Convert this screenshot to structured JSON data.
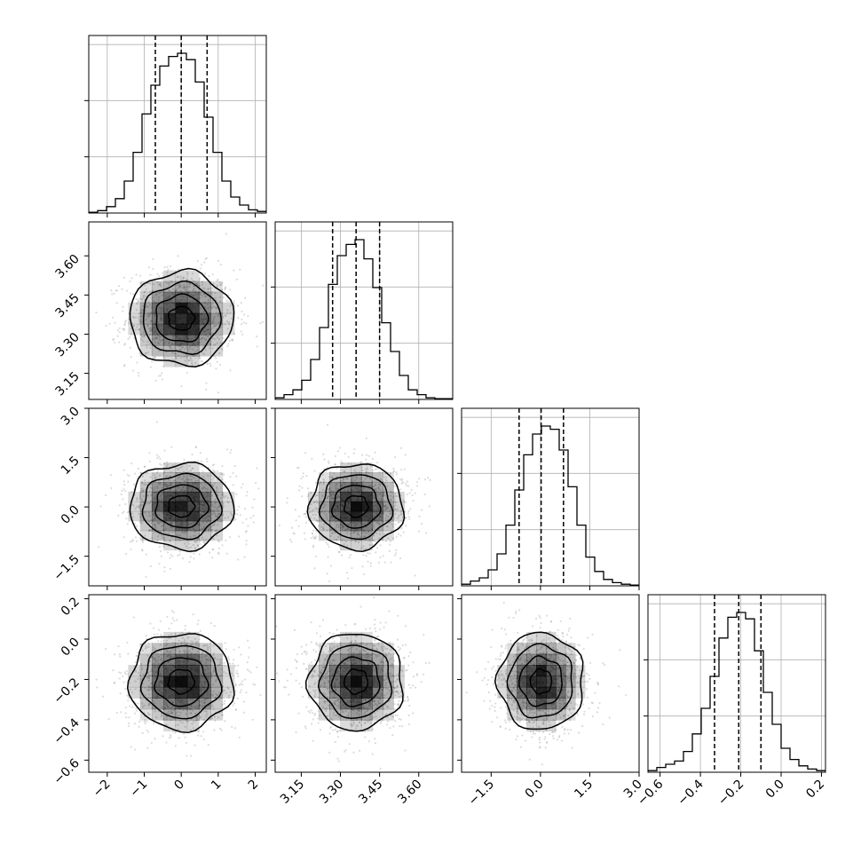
{
  "chart_data": {
    "type": "scatter",
    "variables": [
      {
        "mean": 0.0,
        "sd": 0.7,
        "range": [
          -2.5,
          2.3
        ],
        "ticks": [
          "−2",
          "−1",
          "0",
          "1",
          "2"
        ],
        "tick_values": [
          -2,
          -1,
          0,
          1,
          2
        ],
        "quantiles": [
          -0.7,
          0.0,
          0.7
        ]
      },
      {
        "mean": 3.36,
        "sd": 0.09,
        "range": [
          3.05,
          3.73
        ],
        "ticks": [
          "3.15",
          "3.30",
          "3.45",
          "3.60"
        ],
        "tick_values": [
          3.15,
          3.3,
          3.45,
          3.6
        ],
        "quantiles": [
          3.27,
          3.36,
          3.45
        ]
      },
      {
        "mean": 0.02,
        "sd": 0.65,
        "range": [
          -2.4,
          3.0
        ],
        "ticks": [
          "−1.5",
          "0.0",
          "1.5",
          "3.0"
        ],
        "tick_values": [
          -1.5,
          0.0,
          1.5,
          3.0
        ],
        "quantiles": [
          -0.65,
          0.02,
          0.7
        ]
      },
      {
        "mean": -0.21,
        "sd": 0.12,
        "range": [
          -0.66,
          0.22
        ],
        "ticks": [
          "−0.6",
          "−0.4",
          "−0.2",
          "0.0",
          "0.2"
        ],
        "tick_values": [
          -0.6,
          -0.4,
          -0.2,
          0.0,
          0.2
        ],
        "quantiles": [
          -0.33,
          -0.21,
          -0.1
        ]
      }
    ],
    "histograms": [
      {
        "counts": [
          0.005,
          0.015,
          0.04,
          0.09,
          0.2,
          0.38,
          0.62,
          0.8,
          0.92,
          0.98,
          1.0,
          0.96,
          0.82,
          0.6,
          0.38,
          0.2,
          0.1,
          0.05,
          0.02,
          0.01
        ]
      },
      {
        "counts": [
          0.01,
          0.03,
          0.06,
          0.12,
          0.25,
          0.45,
          0.72,
          0.9,
          0.97,
          1.0,
          0.88,
          0.7,
          0.48,
          0.3,
          0.15,
          0.06,
          0.03,
          0.01,
          0.005,
          0.005
        ]
      },
      {
        "counts": [
          0.01,
          0.03,
          0.05,
          0.1,
          0.2,
          0.38,
          0.6,
          0.82,
          0.95,
          1.0,
          0.98,
          0.85,
          0.62,
          0.38,
          0.18,
          0.09,
          0.04,
          0.02,
          0.01,
          0.005
        ]
      },
      {
        "counts": [
          0.01,
          0.03,
          0.05,
          0.07,
          0.13,
          0.24,
          0.4,
          0.6,
          0.84,
          0.97,
          1.0,
          0.96,
          0.76,
          0.5,
          0.3,
          0.15,
          0.08,
          0.04,
          0.02,
          0.01
        ]
      }
    ],
    "grid": true,
    "quantile_lines": "dashed",
    "colors": {
      "points": "#9a9a9a",
      "lines": "#000000",
      "grid": "#b0b0b0",
      "density": "#000000"
    }
  }
}
